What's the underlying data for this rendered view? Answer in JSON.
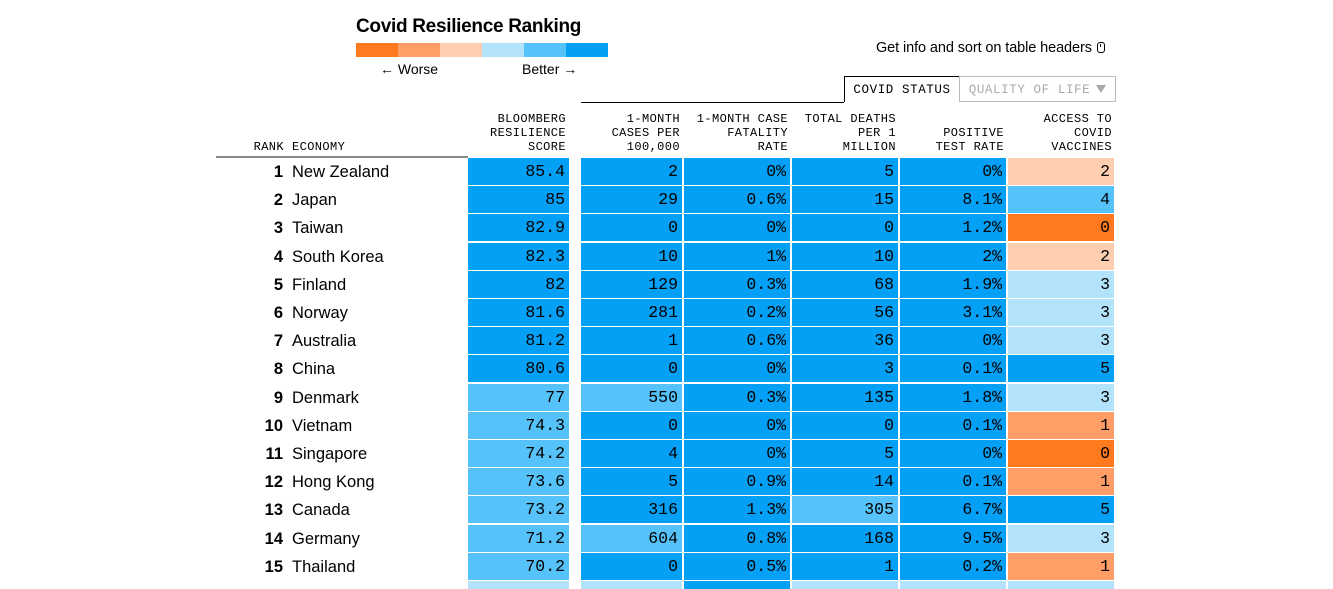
{
  "title": "Covid Resilience Ranking",
  "legend": {
    "worse": "← Worse",
    "better": "Better →",
    "colors": [
      "#ff7a1f",
      "#ff9e66",
      "#ffcdb0",
      "#b3e3fb",
      "#55c3f9",
      "#04a0f5"
    ]
  },
  "info": "Get info and sort on table headers",
  "tabs": {
    "covid": "COVID STATUS",
    "qol": "QUALITY OF LIFE"
  },
  "headers": {
    "rank": "RANK",
    "economy": "ECONOMY",
    "score": "BLOOMBERG\nRESILIENCE\nSCORE",
    "cases": "1-MONTH\nCASES PER\n100,000",
    "fatality": "1-MONTH CASE\nFATALITY\nRATE",
    "deaths": "TOTAL DEATHS\nPER 1\nMILLION",
    "positive": "POSITIVE\nTEST RATE",
    "vaccines": "ACCESS TO\nCOVID\nVACCINES"
  },
  "palette": {
    "dark_blue": "#04a0f5",
    "mid_blue": "#55c3f9",
    "light_blue": "#b3e3fb",
    "light_orange": "#ffcdb0",
    "mid_orange": "#ff9e66",
    "dark_orange": "#ff7a1f"
  },
  "rows": [
    {
      "rank": "1",
      "name": "New Zealand",
      "cells": [
        [
          "85.4",
          "dark_blue"
        ],
        [
          "2",
          "dark_blue"
        ],
        [
          "0%",
          "dark_blue"
        ],
        [
          "5",
          "dark_blue"
        ],
        [
          "0%",
          "dark_blue"
        ],
        [
          "2",
          "light_orange"
        ]
      ]
    },
    {
      "rank": "2",
      "name": "Japan",
      "cells": [
        [
          "85",
          "dark_blue"
        ],
        [
          "29",
          "dark_blue"
        ],
        [
          "0.6%",
          "dark_blue"
        ],
        [
          "15",
          "dark_blue"
        ],
        [
          "8.1%",
          "dark_blue"
        ],
        [
          "4",
          "mid_blue"
        ]
      ]
    },
    {
      "rank": "3",
      "name": "Taiwan",
      "cells": [
        [
          "82.9",
          "dark_blue"
        ],
        [
          "0",
          "dark_blue"
        ],
        [
          "0%",
          "dark_blue"
        ],
        [
          "0",
          "dark_blue"
        ],
        [
          "1.2%",
          "dark_blue"
        ],
        [
          "0",
          "dark_orange"
        ]
      ]
    },
    {
      "rank": "4",
      "name": "South Korea",
      "cells": [
        [
          "82.3",
          "dark_blue"
        ],
        [
          "10",
          "dark_blue"
        ],
        [
          "1%",
          "dark_blue"
        ],
        [
          "10",
          "dark_blue"
        ],
        [
          "2%",
          "dark_blue"
        ],
        [
          "2",
          "light_orange"
        ]
      ]
    },
    {
      "rank": "5",
      "name": "Finland",
      "cells": [
        [
          "82",
          "dark_blue"
        ],
        [
          "129",
          "dark_blue"
        ],
        [
          "0.3%",
          "dark_blue"
        ],
        [
          "68",
          "dark_blue"
        ],
        [
          "1.9%",
          "dark_blue"
        ],
        [
          "3",
          "light_blue"
        ]
      ]
    },
    {
      "rank": "6",
      "name": "Norway",
      "cells": [
        [
          "81.6",
          "dark_blue"
        ],
        [
          "281",
          "dark_blue"
        ],
        [
          "0.2%",
          "dark_blue"
        ],
        [
          "56",
          "dark_blue"
        ],
        [
          "3.1%",
          "dark_blue"
        ],
        [
          "3",
          "light_blue"
        ]
      ]
    },
    {
      "rank": "7",
      "name": "Australia",
      "cells": [
        [
          "81.2",
          "dark_blue"
        ],
        [
          "1",
          "dark_blue"
        ],
        [
          "0.6%",
          "dark_blue"
        ],
        [
          "36",
          "dark_blue"
        ],
        [
          "0%",
          "dark_blue"
        ],
        [
          "3",
          "light_blue"
        ]
      ]
    },
    {
      "rank": "8",
      "name": "China",
      "cells": [
        [
          "80.6",
          "dark_blue"
        ],
        [
          "0",
          "dark_blue"
        ],
        [
          "0%",
          "dark_blue"
        ],
        [
          "3",
          "dark_blue"
        ],
        [
          "0.1%",
          "dark_blue"
        ],
        [
          "5",
          "dark_blue"
        ]
      ]
    },
    {
      "rank": "9",
      "name": "Denmark",
      "cells": [
        [
          "77",
          "mid_blue"
        ],
        [
          "550",
          "mid_blue"
        ],
        [
          "0.3%",
          "dark_blue"
        ],
        [
          "135",
          "dark_blue"
        ],
        [
          "1.8%",
          "dark_blue"
        ],
        [
          "3",
          "light_blue"
        ]
      ]
    },
    {
      "rank": "10",
      "name": "Vietnam",
      "cells": [
        [
          "74.3",
          "mid_blue"
        ],
        [
          "0",
          "dark_blue"
        ],
        [
          "0%",
          "dark_blue"
        ],
        [
          "0",
          "dark_blue"
        ],
        [
          "0.1%",
          "dark_blue"
        ],
        [
          "1",
          "mid_orange"
        ]
      ]
    },
    {
      "rank": "11",
      "name": "Singapore",
      "cells": [
        [
          "74.2",
          "mid_blue"
        ],
        [
          "4",
          "dark_blue"
        ],
        [
          "0%",
          "dark_blue"
        ],
        [
          "5",
          "dark_blue"
        ],
        [
          "0%",
          "dark_blue"
        ],
        [
          "0",
          "dark_orange"
        ]
      ]
    },
    {
      "rank": "12",
      "name": "Hong Kong",
      "cells": [
        [
          "73.6",
          "mid_blue"
        ],
        [
          "5",
          "dark_blue"
        ],
        [
          "0.9%",
          "dark_blue"
        ],
        [
          "14",
          "dark_blue"
        ],
        [
          "0.1%",
          "dark_blue"
        ],
        [
          "1",
          "mid_orange"
        ]
      ]
    },
    {
      "rank": "13",
      "name": "Canada",
      "cells": [
        [
          "73.2",
          "mid_blue"
        ],
        [
          "316",
          "dark_blue"
        ],
        [
          "1.3%",
          "dark_blue"
        ],
        [
          "305",
          "mid_blue"
        ],
        [
          "6.7%",
          "dark_blue"
        ],
        [
          "5",
          "dark_blue"
        ]
      ]
    },
    {
      "rank": "14",
      "name": "Germany",
      "cells": [
        [
          "71.2",
          "mid_blue"
        ],
        [
          "604",
          "mid_blue"
        ],
        [
          "0.8%",
          "dark_blue"
        ],
        [
          "168",
          "dark_blue"
        ],
        [
          "9.5%",
          "dark_blue"
        ],
        [
          "3",
          "light_blue"
        ]
      ]
    },
    {
      "rank": "15",
      "name": "Thailand",
      "cells": [
        [
          "70.2",
          "mid_blue"
        ],
        [
          "0",
          "dark_blue"
        ],
        [
          "0.5%",
          "dark_blue"
        ],
        [
          "1",
          "dark_blue"
        ],
        [
          "0.2%",
          "dark_blue"
        ],
        [
          "1",
          "mid_orange"
        ]
      ]
    }
  ],
  "next_row_colors": [
    "light_blue",
    "light_blue",
    "dark_blue",
    "light_blue",
    "light_blue",
    "light_blue"
  ]
}
